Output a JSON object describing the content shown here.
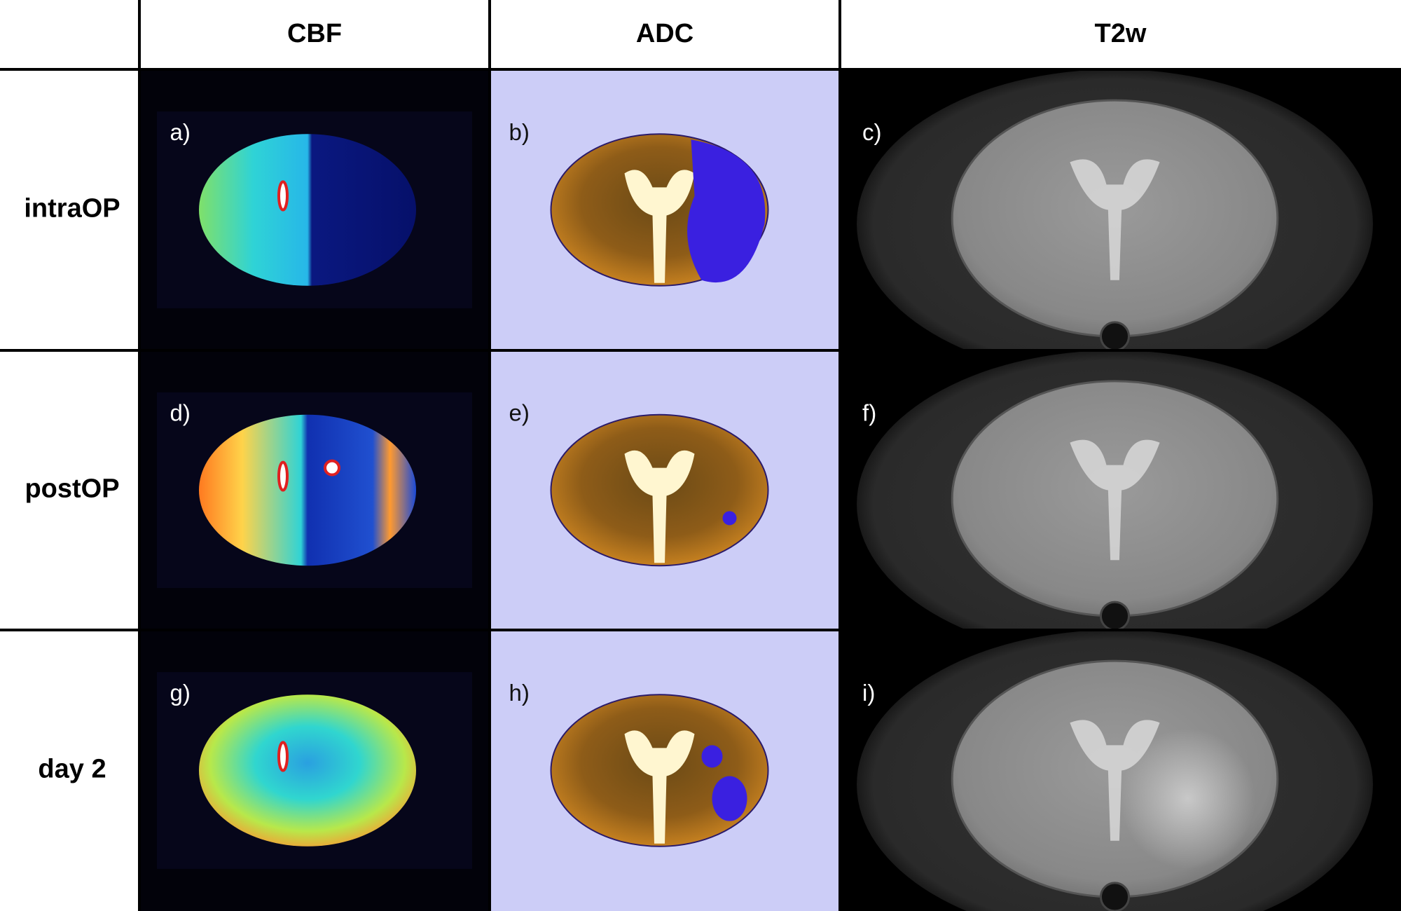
{
  "header": {
    "columns": [
      "CBF",
      "ADC",
      "T2w"
    ]
  },
  "rows": [
    {
      "label": "intraOP",
      "panels": [
        "a)",
        "b)",
        "c)"
      ]
    },
    {
      "label": "postOP",
      "panels": [
        "d)",
        "e)",
        "f)"
      ]
    },
    {
      "label": "day 2",
      "panels": [
        "g)",
        "h)",
        "i)"
      ]
    }
  ]
}
